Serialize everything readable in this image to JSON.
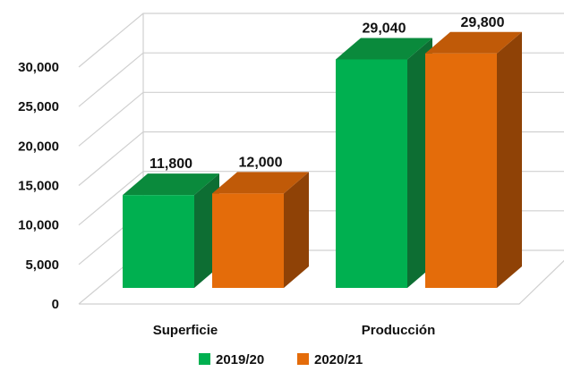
{
  "chart_data": {
    "type": "bar",
    "categories": [
      "Superficie",
      "Producción"
    ],
    "series": [
      {
        "name": "2019/20",
        "values": [
          11800,
          29040
        ],
        "color": "#00b050",
        "top_color": "#0a8a3c",
        "side_color": "#0d6e33"
      },
      {
        "name": "2020/21",
        "values": [
          12000,
          29800
        ],
        "color": "#e46c0a",
        "top_color": "#c05a08",
        "side_color": "#8f4206"
      }
    ],
    "data_labels": [
      [
        "11,800",
        "29,040"
      ],
      [
        "12,000",
        "29,800"
      ]
    ],
    "y_ticks": [
      "0",
      "5,000",
      "10,000",
      "15,000",
      "20,000",
      "25,000",
      "30,000"
    ],
    "ylim": [
      0,
      30000
    ],
    "grid": true,
    "legend_position": "bottom",
    "style": "3d-clustered-column"
  }
}
